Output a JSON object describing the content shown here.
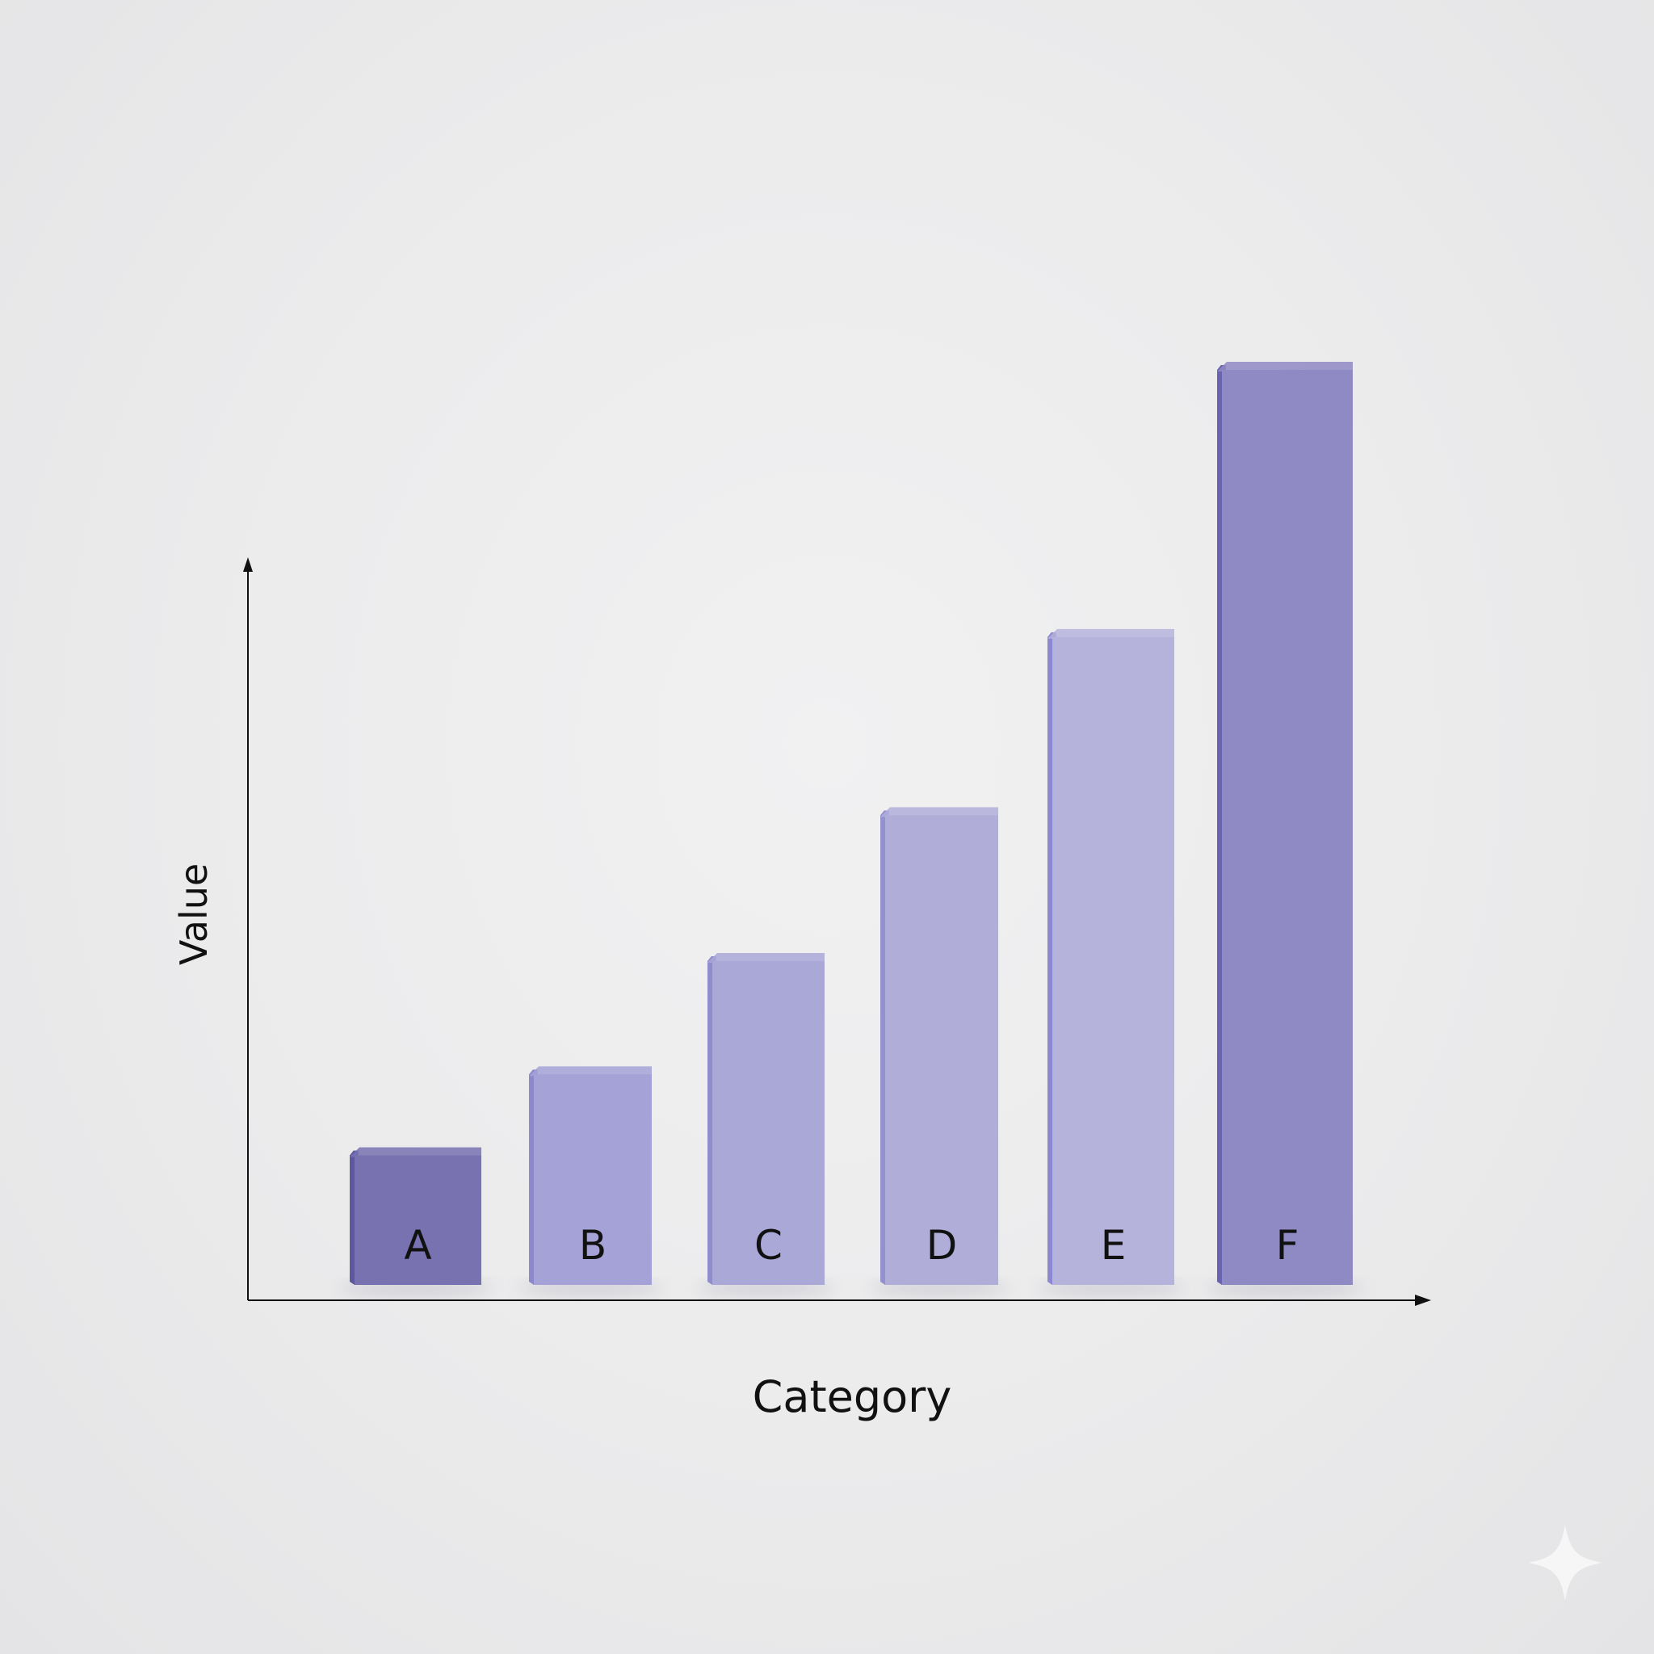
{
  "chart_data": {
    "type": "bar",
    "title": "",
    "xlabel": "Category",
    "ylabel": "Value",
    "categories": [
      "A",
      "B",
      "C",
      "D",
      "E",
      "F"
    ],
    "values": [
      1.6,
      2.6,
      4.0,
      5.8,
      8.0,
      11.3
    ],
    "ylim": [
      0,
      11.5
    ],
    "grid": false,
    "legend": "none",
    "colors": {
      "bars": [
        "#7873b0",
        "#a4a2d6",
        "#aaa8d7",
        "#b0aed9",
        "#b5b3dc",
        "#908ac4"
      ],
      "bar_side": [
        "#5e58a0",
        "#8c89cb",
        "#908dcc",
        "#9491cf",
        "#8c87d2",
        "#6a63b0"
      ],
      "axis": "#111111",
      "background": "#ebebec"
    }
  }
}
